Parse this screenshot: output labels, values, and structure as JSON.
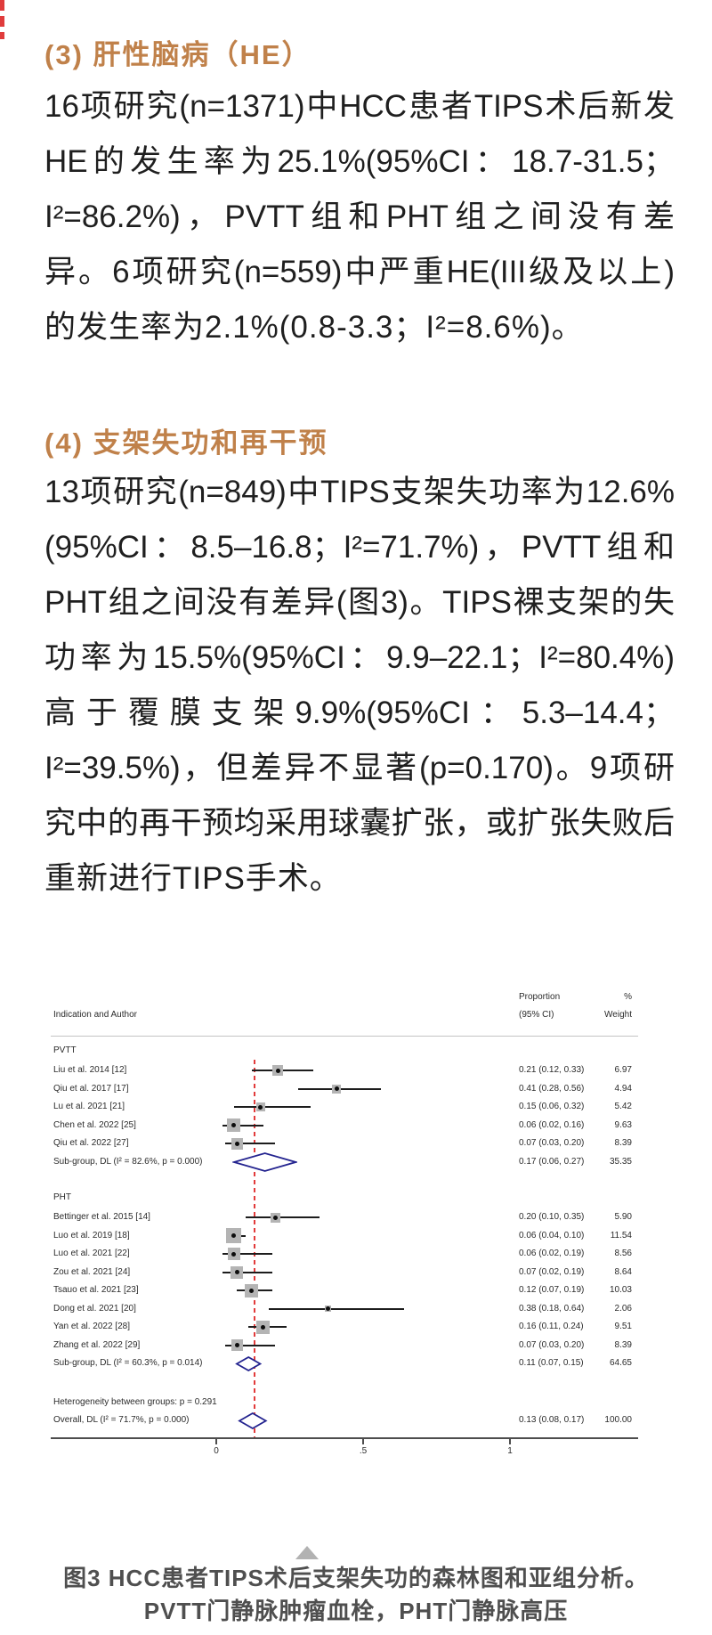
{
  "page": {
    "background": "#ffffff",
    "accent_color": "#c0814a",
    "body_text_color": "#1f1f1f",
    "caption_color": "#4f4f4f"
  },
  "sections": [
    {
      "heading": "(3) 肝性脑病（HE）",
      "lines": [
        "16项研究(n=1371)中HCC患者TIPS术后新发",
        "HE的发生率为25.1%(95%CI：18.7-31.5；",
        "I²=86.2%)，PVTT组和PHT组之间没有差",
        "异。6项研究(n=559)中严重HE(III级及以上)",
        "的发生率为2.1%(0.8-3.3；I²=8.6%)。"
      ]
    },
    {
      "heading": "(4) 支架失功和再干预",
      "lines": [
        "13项研究(n=849)中TIPS支架失功率为12.6%",
        "(95%CI：8.5–16.8；I²=71.7%)，PVTT组和",
        "PHT组之间没有差异(图3)。TIPS裸支架的失",
        "功率为15.5%(95%CI：9.9–22.1；I²=80.4%)",
        "高于覆膜支架9.9%(95%CI：5.3–14.4；",
        "I²=39.5%)，但差异不显著(p=0.170)。9项研",
        "究中的再干预均采用球囊扩张，或扩张失败后",
        "重新进行TIPS手术。"
      ]
    }
  ],
  "figure": {
    "caption_line1": "图3 HCC患者TIPS术后支架失功的森林图和亚组分析。",
    "caption_line2": "PVTT门静脉肿瘤血栓，PHT门静脉高压"
  },
  "chart_data": {
    "type": "forest",
    "columns": {
      "left": "Indication and Author",
      "proportion": [
        "Proportion",
        "(95% CI)"
      ],
      "weight": [
        "%",
        "Weight"
      ]
    },
    "x_axis": {
      "ticks": [
        0,
        0.5,
        1
      ],
      "tick_labels": [
        "0",
        ".5",
        "1"
      ],
      "range": [
        -0.55,
        1.44
      ],
      "grid": false
    },
    "ref_line": 0.13,
    "ref_line_color": "#e23b3b",
    "diamond_color": "#23238f",
    "groups": [
      {
        "name": "PVTT",
        "studies": [
          {
            "label": "Liu et al. 2014 [12]",
            "est": 0.21,
            "lo": 0.12,
            "hi": 0.33,
            "ci_text": "0.21 (0.12, 0.33)",
            "weight": 6.97,
            "weight_text": "6.97"
          },
          {
            "label": "Qiu et al. 2017 [17]",
            "est": 0.41,
            "lo": 0.28,
            "hi": 0.56,
            "ci_text": "0.41 (0.28, 0.56)",
            "weight": 4.94,
            "weight_text": "4.94"
          },
          {
            "label": "Lu et al. 2021 [21]",
            "est": 0.15,
            "lo": 0.06,
            "hi": 0.32,
            "ci_text": "0.15 (0.06, 0.32)",
            "weight": 5.42,
            "weight_text": "5.42"
          },
          {
            "label": "Chen et al. 2022 [25]",
            "est": 0.06,
            "lo": 0.02,
            "hi": 0.16,
            "ci_text": "0.06 (0.02, 0.16)",
            "weight": 9.63,
            "weight_text": "9.63"
          },
          {
            "label": "Qiu et al. 2022 [27]",
            "est": 0.07,
            "lo": 0.03,
            "hi": 0.2,
            "ci_text": "0.07 (0.03, 0.20)",
            "weight": 8.39,
            "weight_text": "8.39"
          }
        ],
        "subgroup": {
          "label": "Sub-group, DL (I² = 82.6%, p = 0.000)",
          "est": 0.17,
          "lo": 0.06,
          "hi": 0.27,
          "ci_text": "0.17 (0.06, 0.27)",
          "weight_text": "35.35"
        }
      },
      {
        "name": "PHT",
        "studies": [
          {
            "label": "Bettinger et al. 2015 [14]",
            "est": 0.2,
            "lo": 0.1,
            "hi": 0.35,
            "ci_text": "0.20 (0.10, 0.35)",
            "weight": 5.9,
            "weight_text": "5.90"
          },
          {
            "label": "Luo et al. 2019 [18]",
            "est": 0.06,
            "lo": 0.04,
            "hi": 0.1,
            "ci_text": "0.06 (0.04, 0.10)",
            "weight": 11.54,
            "weight_text": "11.54"
          },
          {
            "label": "Luo et al. 2021 [22]",
            "est": 0.06,
            "lo": 0.02,
            "hi": 0.19,
            "ci_text": "0.06 (0.02, 0.19)",
            "weight": 8.56,
            "weight_text": "8.56"
          },
          {
            "label": "Zou et al. 2021 [24]",
            "est": 0.07,
            "lo": 0.02,
            "hi": 0.19,
            "ci_text": "0.07 (0.02, 0.19)",
            "weight": 8.64,
            "weight_text": "8.64"
          },
          {
            "label": "Tsauo et al. 2021 [23]",
            "est": 0.12,
            "lo": 0.07,
            "hi": 0.19,
            "ci_text": "0.12 (0.07, 0.19)",
            "weight": 10.03,
            "weight_text": "10.03"
          },
          {
            "label": "Dong et al. 2021 [20]",
            "est": 0.38,
            "lo": 0.18,
            "hi": 0.64,
            "ci_text": "0.38 (0.18, 0.64)",
            "weight": 2.06,
            "weight_text": "2.06"
          },
          {
            "label": "Yan et al. 2022 [28]",
            "est": 0.16,
            "lo": 0.11,
            "hi": 0.24,
            "ci_text": "0.16 (0.11, 0.24)",
            "weight": 9.51,
            "weight_text": "9.51"
          },
          {
            "label": "Zhang et al. 2022 [29]",
            "est": 0.07,
            "lo": 0.03,
            "hi": 0.2,
            "ci_text": "0.07 (0.03, 0.20)",
            "weight": 8.39,
            "weight_text": "8.39"
          }
        ],
        "subgroup": {
          "label": "Sub-group, DL (I² = 60.3%, p = 0.014)",
          "est": 0.11,
          "lo": 0.07,
          "hi": 0.15,
          "ci_text": "0.11 (0.07, 0.15)",
          "weight_text": "64.65"
        }
      }
    ],
    "heterogeneity_label": "Heterogeneity between groups: p = 0.291",
    "overall": {
      "label": "Overall, DL (I² = 71.7%, p = 0.000)",
      "est": 0.13,
      "lo": 0.08,
      "hi": 0.17,
      "ci_text": "0.13 (0.08, 0.17)",
      "weight_text": "100.00"
    }
  }
}
